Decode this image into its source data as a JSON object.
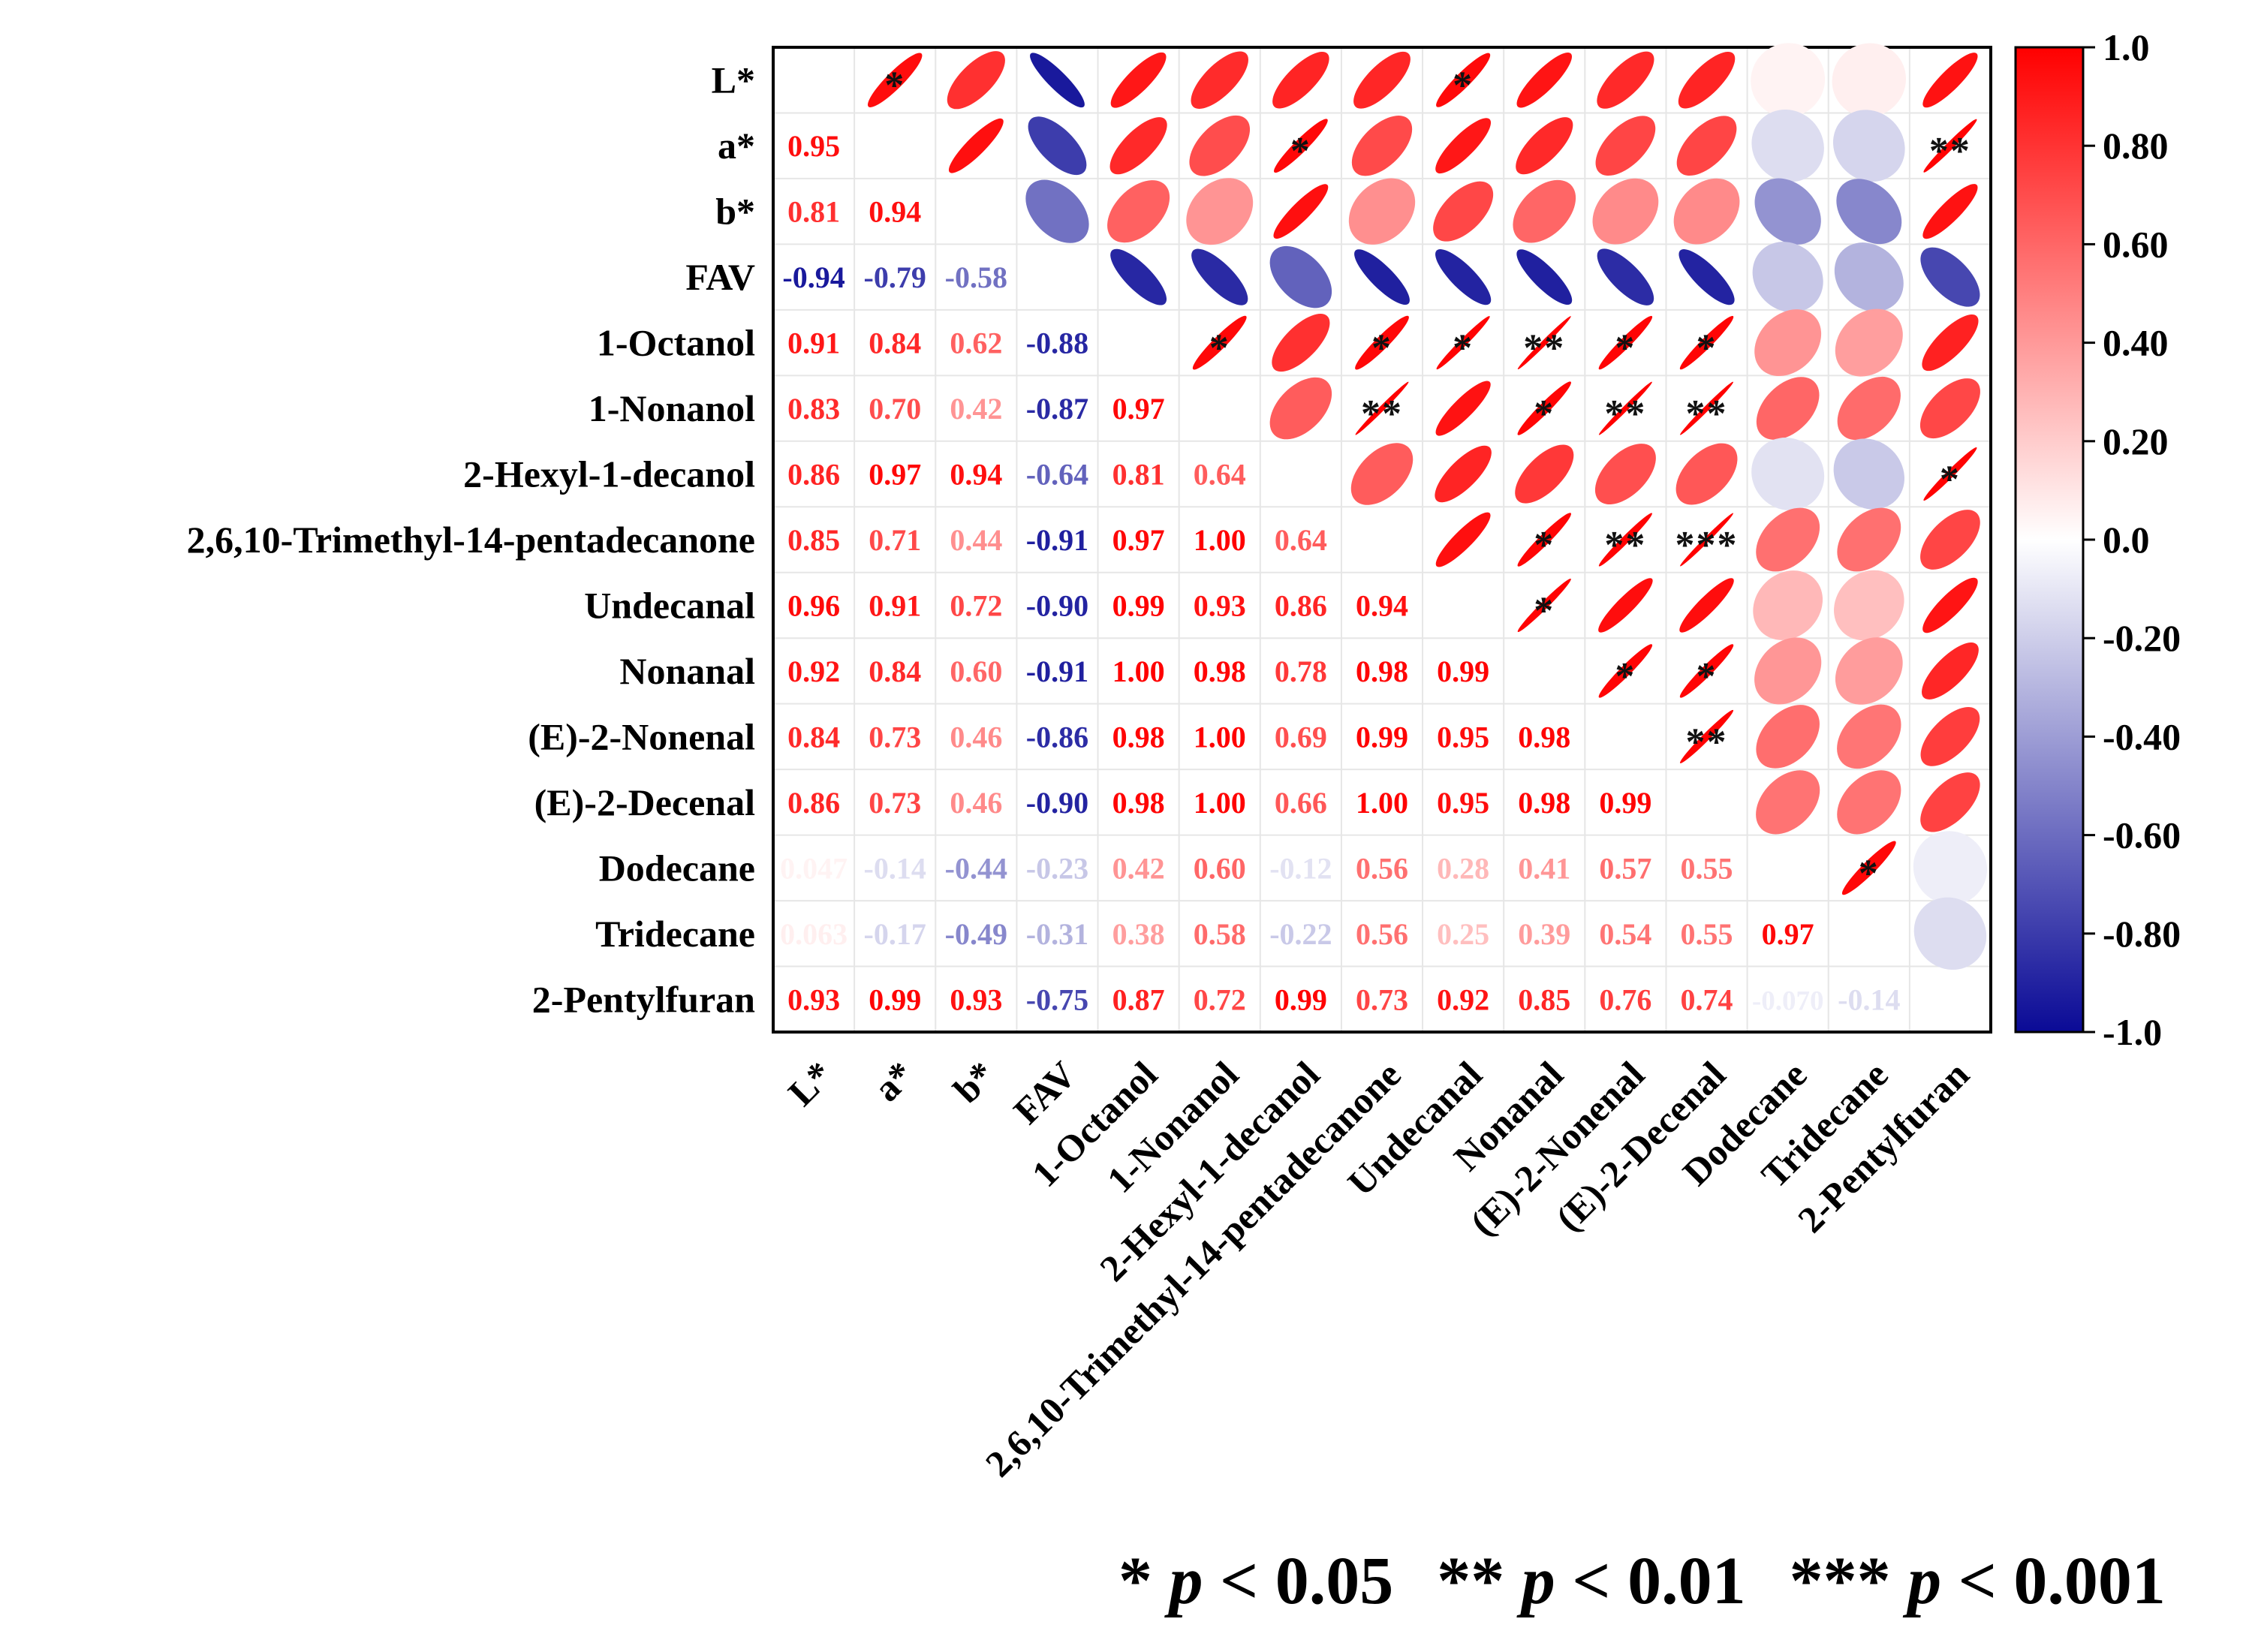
{
  "chart_data": {
    "type": "heatmap",
    "variables": [
      "L*",
      "a*",
      "b*",
      "FAV",
      "1-Octanol",
      "1-Nonanol",
      "2-Hexyl-1-decanol",
      "2,6,10-Trimethyl-14-pentadecanone",
      "Undecanal",
      "Nonanal",
      "(E)-2-Nonenal",
      "(E)-2-Decenal",
      "Dodecane",
      "Tridecane",
      "2-Pentylfuran"
    ],
    "lower_labels": [
      [],
      [
        "0.95"
      ],
      [
        "0.81",
        "0.94"
      ],
      [
        "-0.94",
        "-0.79",
        "-0.58"
      ],
      [
        "0.91",
        "0.84",
        "0.62",
        "-0.88"
      ],
      [
        "0.83",
        "0.70",
        "0.42",
        "-0.87",
        "0.97"
      ],
      [
        "0.86",
        "0.97",
        "0.94",
        "-0.64",
        "0.81",
        "0.64"
      ],
      [
        "0.85",
        "0.71",
        "0.44",
        "-0.91",
        "0.97",
        "1.00",
        "0.64"
      ],
      [
        "0.96",
        "0.91",
        "0.72",
        "-0.90",
        "0.99",
        "0.93",
        "0.86",
        "0.94"
      ],
      [
        "0.92",
        "0.84",
        "0.60",
        "-0.91",
        "1.00",
        "0.98",
        "0.78",
        "0.98",
        "0.99"
      ],
      [
        "0.84",
        "0.73",
        "0.46",
        "-0.86",
        "0.98",
        "1.00",
        "0.69",
        "0.99",
        "0.95",
        "0.98"
      ],
      [
        "0.86",
        "0.73",
        "0.46",
        "-0.90",
        "0.98",
        "1.00",
        "0.66",
        "1.00",
        "0.95",
        "0.98",
        "0.99"
      ],
      [
        "0.047",
        "-0.14",
        "-0.44",
        "-0.23",
        "0.42",
        "0.60",
        "-0.12",
        "0.56",
        "0.28",
        "0.41",
        "0.57",
        "0.55"
      ],
      [
        "0.063",
        "-0.17",
        "-0.49",
        "-0.31",
        "0.38",
        "0.58",
        "-0.22",
        "0.56",
        "0.25",
        "0.39",
        "0.54",
        "0.55",
        "0.97"
      ],
      [
        "0.93",
        "0.99",
        "0.93",
        "-0.75",
        "0.87",
        "0.72",
        "0.99",
        "0.73",
        "0.92",
        "0.85",
        "0.76",
        "0.74",
        "-0.070",
        "-0.14"
      ]
    ],
    "significance": [
      [
        [
          0,
          1
        ],
        "*"
      ],
      [
        [
          0,
          8
        ],
        "*"
      ],
      [
        [
          1,
          6
        ],
        "*"
      ],
      [
        [
          1,
          14
        ],
        "**"
      ],
      [
        [
          4,
          5
        ],
        "*"
      ],
      [
        [
          4,
          7
        ],
        "*"
      ],
      [
        [
          4,
          8
        ],
        "*"
      ],
      [
        [
          4,
          9
        ],
        "**"
      ],
      [
        [
          4,
          10
        ],
        "*"
      ],
      [
        [
          4,
          11
        ],
        "*"
      ],
      [
        [
          5,
          7
        ],
        "**"
      ],
      [
        [
          5,
          9
        ],
        "*"
      ],
      [
        [
          5,
          10
        ],
        "**"
      ],
      [
        [
          5,
          11
        ],
        "**"
      ],
      [
        [
          6,
          14
        ],
        "*"
      ],
      [
        [
          7,
          9
        ],
        "*"
      ],
      [
        [
          7,
          10
        ],
        "**"
      ],
      [
        [
          7,
          11
        ],
        "***"
      ],
      [
        [
          8,
          9
        ],
        "*"
      ],
      [
        [
          9,
          10
        ],
        "*"
      ],
      [
        [
          9,
          11
        ],
        "*"
      ],
      [
        [
          10,
          11
        ],
        "**"
      ],
      [
        [
          12,
          13
        ],
        "*"
      ]
    ],
    "colorbar": {
      "ticks": [
        "1.0",
        "0.80",
        "0.60",
        "0.40",
        "0.20",
        "0.0",
        "-0.20",
        "-0.40",
        "-0.60",
        "-0.80",
        "-1.0"
      ],
      "range": [
        -1,
        1
      ],
      "colors": {
        "negative": "#0a0a96",
        "neutral": "#ffffff",
        "positive": "#ff0000"
      }
    },
    "legend": [
      {
        "stars": "*",
        "p_symbol": "p",
        "threshold": "< 0.05"
      },
      {
        "stars": "**",
        "p_symbol": "p",
        "threshold": "< 0.01"
      },
      {
        "stars": "***",
        "p_symbol": "p",
        "threshold": "< 0.001"
      }
    ]
  }
}
